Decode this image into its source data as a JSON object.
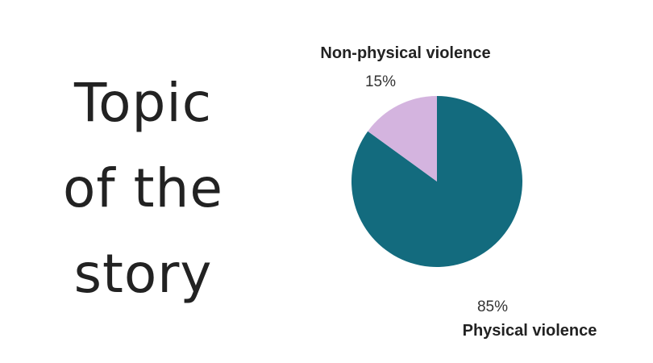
{
  "heading": {
    "lines": [
      "Topic",
      "of the",
      "story"
    ]
  },
  "chart_data": {
    "type": "pie",
    "title": "",
    "slices": [
      {
        "label": "Physical violence",
        "value": 85,
        "value_label": "85%",
        "color": "#136b7e"
      },
      {
        "label": "Non-physical violence",
        "value": 15,
        "value_label": "15%",
        "color": "#d4b4df"
      }
    ]
  }
}
